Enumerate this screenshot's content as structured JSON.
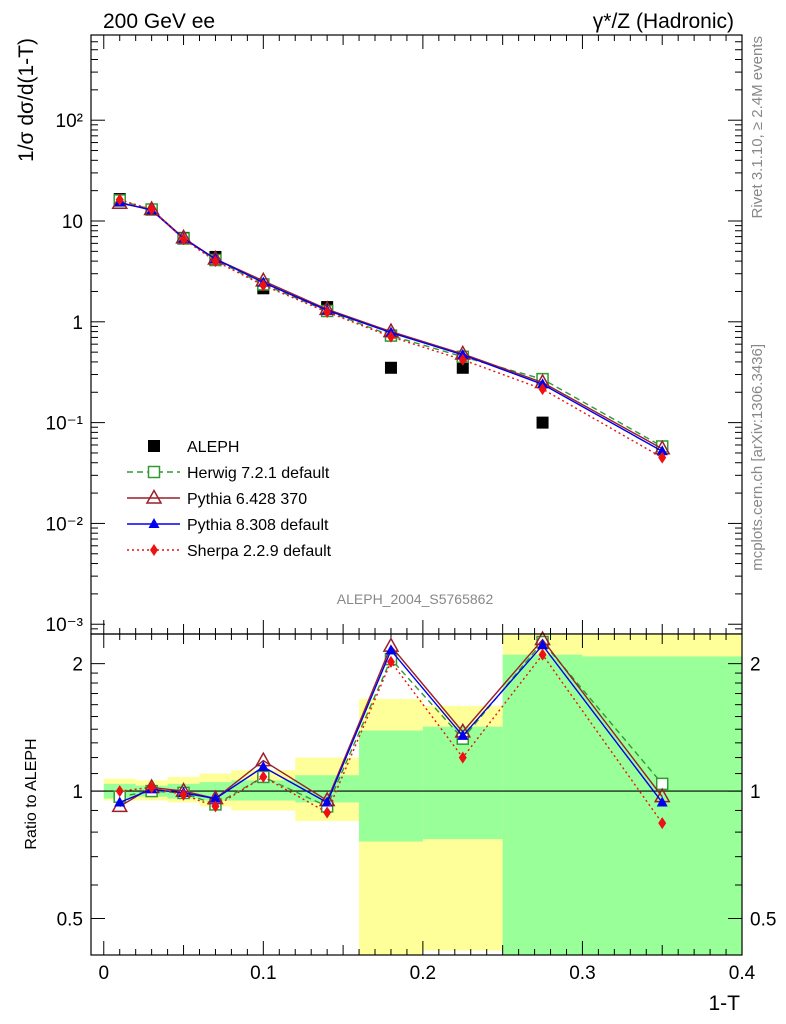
{
  "header": {
    "left": "200 GeV ee",
    "right": "γ*/Z (Hadronic)"
  },
  "side_labels": {
    "rivet": "Rivet 3.1.10, ≥ 2.4M events",
    "mcplots": "mcplots.cern.ch [arXiv:1306.3436]"
  },
  "watermark": "ALEPH_2004_S5765862",
  "chart_data": [
    {
      "type": "line",
      "panel": "main",
      "ylabel": "1/σ dσ/d(1-T)",
      "yscale": "log",
      "ylim": [
        0.0008,
        700
      ],
      "xlim": [
        -0.008,
        0.4
      ],
      "y_ticks": [
        "10⁻³",
        "10⁻²",
        "10⁻¹",
        "1",
        "10",
        "10²"
      ],
      "x": [
        0.01,
        0.03,
        0.05,
        0.07,
        0.1,
        0.14,
        0.18,
        0.225,
        0.275,
        0.35
      ],
      "bins": [
        [
          0.0,
          0.02
        ],
        [
          0.02,
          0.04
        ],
        [
          0.04,
          0.06
        ],
        [
          0.06,
          0.08
        ],
        [
          0.08,
          0.12
        ],
        [
          0.12,
          0.16
        ],
        [
          0.16,
          0.2
        ],
        [
          0.2,
          0.25
        ],
        [
          0.25,
          0.3
        ],
        [
          0.3,
          0.4
        ]
      ],
      "series": [
        {
          "name": "ALEPH",
          "color": "#000000",
          "marker": "square",
          "line": "none",
          "values": [
            16.5,
            13.0,
            6.8,
            4.4,
            2.15,
            1.4,
            0.35,
            0.35,
            0.1,
            null
          ]
        },
        {
          "name": "Herwig 7.2.1 default",
          "color": "#339933",
          "marker": "open-square",
          "line": "dashed",
          "values": [
            16.0,
            13.0,
            6.7,
            4.1,
            2.35,
            1.28,
            0.73,
            0.45,
            0.27,
            0.058
          ]
        },
        {
          "name": "Pythia 6.428 370",
          "color": "#991f2b",
          "marker": "open-triangle",
          "line": "solid",
          "values": [
            15.0,
            13.0,
            6.8,
            4.2,
            2.55,
            1.33,
            0.8,
            0.48,
            0.25,
            0.055
          ]
        },
        {
          "name": "Pythia 8.308 default",
          "color": "#0000ee",
          "marker": "triangle",
          "line": "solid",
          "values": [
            15.3,
            12.8,
            6.7,
            4.2,
            2.45,
            1.3,
            0.78,
            0.47,
            0.24,
            0.052
          ]
        },
        {
          "name": "Sherpa 2.2.9 default",
          "color": "#ee1111",
          "marker": "diamond",
          "line": "dotted",
          "values": [
            16.3,
            13.0,
            6.6,
            4.0,
            2.3,
            1.25,
            0.71,
            0.42,
            0.215,
            0.045
          ]
        }
      ]
    },
    {
      "type": "line",
      "panel": "ratio",
      "ylabel": "Ratio to ALEPH",
      "xlabel": "1-T",
      "yscale": "log",
      "ylim": [
        0.41,
        2.35
      ],
      "y_ticks": [
        "0.5",
        "1",
        "2"
      ],
      "x_ticks": [
        "0",
        "0.1",
        "0.2",
        "0.3",
        "0.4"
      ],
      "x": [
        0.01,
        0.03,
        0.05,
        0.07,
        0.1,
        0.14,
        0.18,
        0.225,
        0.275,
        0.35
      ],
      "uncertainty_bands": {
        "stat_color": "#99ff99",
        "total_color": "#ffff99",
        "stat": [
          [
            0.96,
            1.04
          ],
          [
            0.97,
            1.03
          ],
          [
            0.96,
            1.04
          ],
          [
            0.95,
            1.05
          ],
          [
            0.95,
            1.06
          ],
          [
            0.94,
            1.09
          ],
          [
            0.76,
            1.39
          ],
          [
            0.77,
            1.42
          ],
          [
            0.4,
            2.1
          ],
          [
            0.4,
            2.08
          ]
        ],
        "total": [
          [
            0.95,
            1.07
          ],
          [
            0.95,
            1.06
          ],
          [
            0.94,
            1.08
          ],
          [
            0.92,
            1.1
          ],
          [
            0.9,
            1.12
          ],
          [
            0.85,
            1.2
          ],
          [
            0.38,
            1.65
          ],
          [
            0.42,
            1.59
          ],
          [
            0.4,
            2.4
          ],
          [
            0.4,
            2.4
          ]
        ]
      },
      "series": [
        {
          "name": "Herwig 7.2.1 default",
          "color": "#339933",
          "marker": "open-square",
          "line": "dashed",
          "values": [
            0.97,
            1.0,
            0.99,
            0.93,
            1.08,
            0.92,
            2.05,
            1.33,
            2.25,
            1.04
          ]
        },
        {
          "name": "Pythia 6.428 370",
          "color": "#991f2b",
          "marker": "open-triangle",
          "line": "solid",
          "values": [
            0.92,
            1.02,
            1.0,
            0.96,
            1.18,
            0.95,
            2.2,
            1.38,
            2.28,
            0.97
          ]
        },
        {
          "name": "Pythia 8.308 default",
          "color": "#0000ee",
          "marker": "triangle",
          "line": "solid",
          "values": [
            0.94,
            1.01,
            0.99,
            0.96,
            1.14,
            0.94,
            2.15,
            1.35,
            2.21,
            0.94
          ]
        },
        {
          "name": "Sherpa 2.2.9 default",
          "color": "#ee1111",
          "marker": "diamond",
          "line": "dotted",
          "values": [
            1.0,
            1.02,
            0.98,
            0.92,
            1.08,
            0.89,
            2.02,
            1.2,
            2.1,
            0.84
          ]
        }
      ]
    }
  ]
}
